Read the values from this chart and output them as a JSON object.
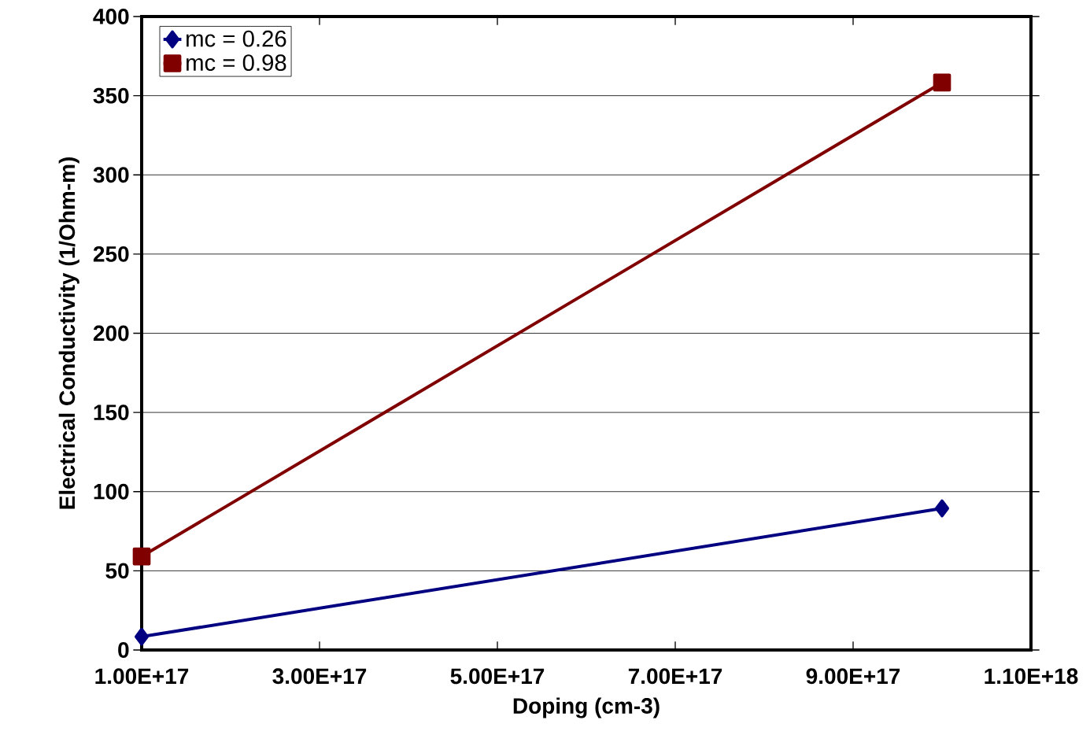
{
  "chart_data": {
    "type": "line",
    "xlabel": "Doping (cm-3)",
    "ylabel": "Electrical Conductivity (1/Ohm-m)",
    "x": [
      1e+17,
      1e+18
    ],
    "series": [
      {
        "name": "mc = 0.26",
        "color": "#000080",
        "marker": "diamond",
        "values": [
          8.4,
          89.4
        ]
      },
      {
        "name": "mc = 0.98",
        "color": "#800000",
        "marker": "square",
        "values": [
          59.1,
          358.3
        ]
      }
    ],
    "xlim": [
      1e+17,
      1.1e+18
    ],
    "xticks": [
      {
        "value": 1e+17,
        "label": "1.00E+17"
      },
      {
        "value": 3e+17,
        "label": "3.00E+17"
      },
      {
        "value": 5e+17,
        "label": "5.00E+17"
      },
      {
        "value": 7e+17,
        "label": "7.00E+17"
      },
      {
        "value": 9e+17,
        "label": "9.00E+17"
      },
      {
        "value": 1.1e+18,
        "label": "1.10E+18"
      }
    ],
    "ylim": [
      0,
      400
    ],
    "yticks": [
      0,
      50,
      100,
      150,
      200,
      250,
      300,
      350,
      400
    ],
    "grid": "y",
    "legend": "top left",
    "line_style": "solid"
  }
}
